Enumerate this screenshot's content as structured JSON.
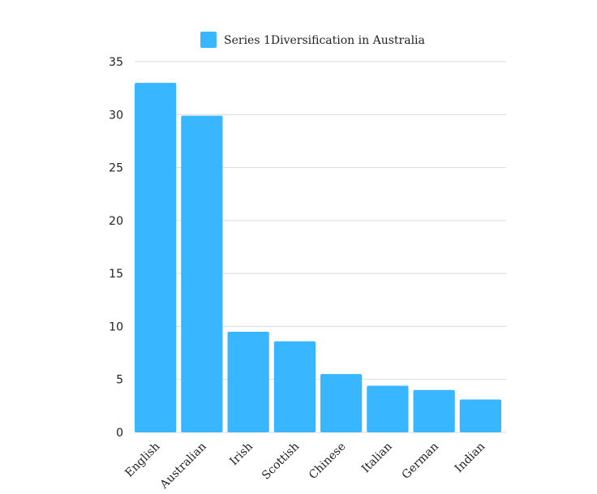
{
  "chart_data": {
    "type": "bar",
    "categories": [
      "English",
      "Australian",
      "Irish",
      "Scottish",
      "Chinese",
      "Italian",
      "German",
      "Indian"
    ],
    "series": [
      {
        "name": "Series 1Diversification in Australia",
        "values": [
          33,
          29.9,
          9.5,
          8.6,
          5.5,
          4.4,
          4.0,
          3.1
        ],
        "color": "#38b6ff"
      }
    ],
    "ylim": [
      0,
      35
    ],
    "yticks": [
      0,
      5,
      10,
      15,
      20,
      25,
      30,
      35
    ],
    "grid": true,
    "legend_position": "top"
  }
}
